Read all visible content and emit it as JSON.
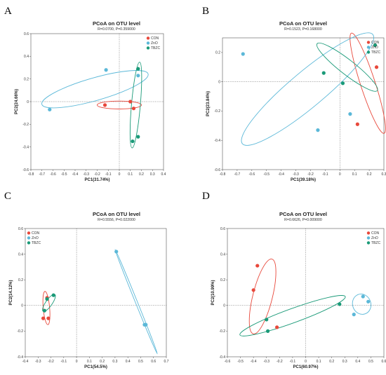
{
  "series_colors": {
    "CON": "#e8483b",
    "ZnO": "#5bb8d8",
    "TBZC": "#1a9a78"
  },
  "chart_data": [
    {
      "type": "scatter",
      "panel_label": "A",
      "title": "PCoA on OTU level",
      "subtitle": "R=0.0700, P=0.359000",
      "xlabel": "PC1(31.74%)",
      "ylabel": "PC2(24.66%)",
      "xlim": [
        -0.8,
        0.4
      ],
      "ylim": [
        -0.6,
        0.6
      ],
      "xticks": [
        "-0.8",
        "-0.7",
        "-0.6",
        "-0.5",
        "-0.4",
        "-0.3",
        "-0.2",
        "-0.1",
        "0",
        "0.1",
        "0.2",
        "0.3",
        "0.4"
      ],
      "yticks": [
        "-0.6",
        "-0.4",
        "-0.2",
        "0",
        "0.2",
        "0.4",
        "0.6"
      ],
      "legend": [
        "CON",
        "ZnO",
        "TBZC"
      ],
      "legend_position": "top-right",
      "series": [
        {
          "name": "CON",
          "points": [
            [
              -0.13,
              -0.03
            ],
            [
              0.1,
              0.0
            ],
            [
              0.13,
              -0.06
            ]
          ]
        },
        {
          "name": "ZnO",
          "points": [
            [
              -0.12,
              0.28
            ],
            [
              -0.63,
              -0.07
            ],
            [
              0.17,
              0.23
            ]
          ]
        },
        {
          "name": "TBZC",
          "points": [
            [
              0.17,
              0.29
            ],
            [
              0.17,
              -0.31
            ],
            [
              0.12,
              -0.35
            ]
          ]
        }
      ],
      "ellipses": [
        {
          "series": "CON",
          "cx": 0.0,
          "cy": -0.03,
          "rx": 0.2,
          "ry": 0.035,
          "angle": 0
        },
        {
          "series": "ZnO",
          "cx": -0.22,
          "cy": 0.11,
          "rx": 0.5,
          "ry": 0.1,
          "angle": 16
        },
        {
          "series": "TBZC",
          "cx": 0.15,
          "cy": -0.03,
          "rx": 0.04,
          "ry": 0.38,
          "angle": -5
        }
      ]
    },
    {
      "type": "scatter",
      "panel_label": "B",
      "title": "PCoA on OTU level",
      "subtitle": "R=0.1523, P=0.168000",
      "xlabel": "PC1(39.18%)",
      "ylabel": "PC2(23.84%)",
      "xlim": [
        -0.8,
        0.3
      ],
      "ylim": [
        -0.6,
        0.3
      ],
      "xticks": [
        "-0.8",
        "-0.7",
        "-0.6",
        "-0.5",
        "-0.4",
        "-0.3",
        "-0.2",
        "-0.1",
        "0",
        "0.1",
        "0.2",
        "0.3"
      ],
      "yticks": [
        "-0.6",
        "-0.4",
        "-0.2",
        "0",
        "0.2"
      ],
      "legend": [
        "CON",
        "ZnO",
        "TBZC"
      ],
      "legend_position": "top-right",
      "series": [
        {
          "name": "CON",
          "points": [
            [
              0.24,
              0.25
            ],
            [
              0.25,
              0.1
            ],
            [
              0.12,
              -0.29
            ]
          ]
        },
        {
          "name": "ZnO",
          "points": [
            [
              -0.66,
              0.19
            ],
            [
              -0.15,
              -0.33
            ],
            [
              0.07,
              -0.22
            ]
          ]
        },
        {
          "name": "TBZC",
          "points": [
            [
              -0.11,
              0.06
            ],
            [
              0.02,
              -0.01
            ],
            [
              0.24,
              0.25
            ]
          ]
        }
      ],
      "ellipses": [
        {
          "series": "CON",
          "cx": 0.19,
          "cy": -0.01,
          "rx": 0.05,
          "ry": 0.36,
          "angle": 18
        },
        {
          "series": "ZnO",
          "cx": -0.22,
          "cy": -0.05,
          "rx": 0.58,
          "ry": 0.12,
          "angle": 40
        },
        {
          "series": "TBZC",
          "cx": 0.05,
          "cy": 0.1,
          "rx": 0.26,
          "ry": 0.05,
          "angle": -38
        }
      ]
    },
    {
      "type": "scatter",
      "panel_label": "C",
      "title": "PCoA on OTU level",
      "subtitle": "R=0.5556, P=0.022000",
      "xlabel": "PC1(54.5%)",
      "ylabel": "PC2(14.12%)",
      "xlim": [
        -0.4,
        0.7
      ],
      "ylim": [
        -0.4,
        0.6
      ],
      "xticks": [
        "-0.4",
        "-0.3",
        "-0.2",
        "-0.1",
        "0",
        "0.1",
        "0.2",
        "0.3",
        "0.4",
        "0.5",
        "0.6",
        "0.7"
      ],
      "yticks": [
        "-0.4",
        "-0.2",
        "0",
        "0.2",
        "0.4",
        "0.6"
      ],
      "legend": [
        "CON",
        "ZnO",
        "TBZC"
      ],
      "legend_position": "top-left",
      "series": [
        {
          "name": "CON",
          "points": [
            [
              -0.26,
              -0.1
            ],
            [
              -0.22,
              -0.1
            ],
            [
              -0.23,
              0.06
            ]
          ]
        },
        {
          "name": "ZnO",
          "points": [
            [
              0.31,
              0.42
            ],
            [
              0.53,
              -0.15
            ],
            [
              0.54,
              -0.15
            ]
          ]
        },
        {
          "name": "TBZC",
          "points": [
            [
              -0.25,
              -0.04
            ],
            [
              -0.23,
              0.05
            ],
            [
              -0.18,
              0.08
            ]
          ]
        }
      ],
      "ellipses": [
        {
          "series": "CON",
          "cx": -0.235,
          "cy": -0.02,
          "rx": 0.025,
          "ry": 0.13,
          "angle": 5
        },
        {
          "series": "ZnO",
          "cx": 0.465,
          "cy": 0.03,
          "rx": 0.44,
          "ry": 0.008,
          "angle": -68
        },
        {
          "series": "TBZC",
          "cx": -0.215,
          "cy": 0.02,
          "rx": 0.08,
          "ry": 0.025,
          "angle": 55
        }
      ]
    },
    {
      "type": "scatter",
      "panel_label": "D",
      "title": "PCoA on OTU level",
      "subtitle": "R=0.6626, P=0.009000",
      "xlabel": "PC1(60.97%)",
      "ylabel": "PC2(10.99%)",
      "xlim": [
        -0.6,
        0.6
      ],
      "ylim": [
        -0.4,
        0.6
      ],
      "xticks": [
        "-0.6",
        "-0.5",
        "-0.4",
        "-0.3",
        "-0.2",
        "-0.1",
        "0",
        "0.1",
        "0.2",
        "0.3",
        "0.4",
        "0.5",
        "0.6"
      ],
      "yticks": [
        "-0.4",
        "-0.2",
        "0",
        "0.2",
        "0.4",
        "0.6"
      ],
      "legend": [
        "CON",
        "ZnO",
        "TBZC"
      ],
      "legend_position": "top-right",
      "series": [
        {
          "name": "CON",
          "points": [
            [
              -0.37,
              0.31
            ],
            [
              -0.4,
              0.12
            ],
            [
              -0.22,
              -0.17
            ]
          ]
        },
        {
          "name": "ZnO",
          "points": [
            [
              0.44,
              0.07
            ],
            [
              0.48,
              0.03
            ],
            [
              0.37,
              -0.07
            ]
          ]
        },
        {
          "name": "TBZC",
          "points": [
            [
              0.26,
              0.01
            ],
            [
              -0.3,
              -0.11
            ],
            [
              -0.29,
              -0.2
            ]
          ]
        }
      ],
      "ellipses": [
        {
          "series": "CON",
          "cx": -0.33,
          "cy": 0.07,
          "rx": 0.075,
          "ry": 0.3,
          "angle": -14
        },
        {
          "series": "ZnO",
          "cx": 0.43,
          "cy": 0.01,
          "rx": 0.07,
          "ry": 0.08,
          "angle": 20
        },
        {
          "series": "TBZC",
          "cx": -0.1,
          "cy": -0.08,
          "rx": 0.43,
          "ry": 0.055,
          "angle": 20
        }
      ]
    }
  ]
}
